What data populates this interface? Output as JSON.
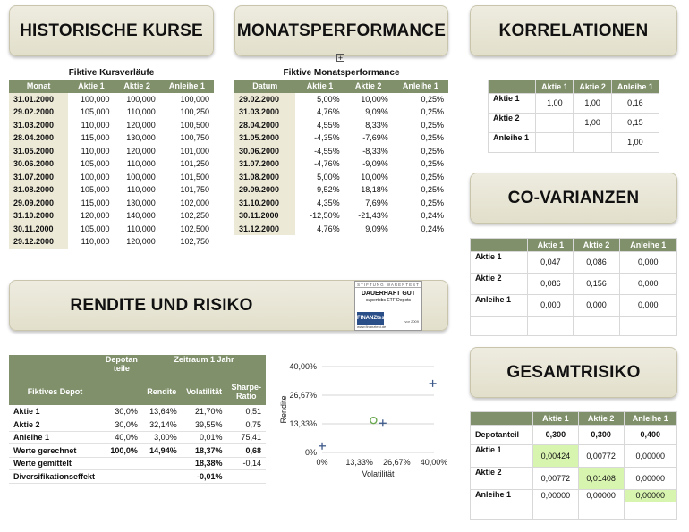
{
  "banners": {
    "historische": "HISTORISCHE KURSE",
    "monatsperformance": "MONATSPERFORMANCE",
    "korrelationen": "KORRELATIONEN",
    "covarianzen": "CO-VARIANZEN",
    "rendite": "RENDITE UND RISIKO",
    "gesamtrisiko": "GESAMTRISIKO"
  },
  "kurse": {
    "caption": "Fiktive Kursverläufe",
    "headers": [
      "Monat",
      "Aktie 1",
      "Aktie 2",
      "Anleihe 1"
    ],
    "rows": [
      [
        "31.01.2000",
        "100,000",
        "100,000",
        "100,000"
      ],
      [
        "29.02.2000",
        "105,000",
        "110,000",
        "100,250"
      ],
      [
        "31.03.2000",
        "110,000",
        "120,000",
        "100,500"
      ],
      [
        "28.04.2000",
        "115,000",
        "130,000",
        "100,750"
      ],
      [
        "31.05.2000",
        "110,000",
        "120,000",
        "101,000"
      ],
      [
        "30.06.2000",
        "105,000",
        "110,000",
        "101,250"
      ],
      [
        "31.07.2000",
        "100,000",
        "100,000",
        "101,500"
      ],
      [
        "31.08.2000",
        "105,000",
        "110,000",
        "101,750"
      ],
      [
        "29.09.2000",
        "115,000",
        "130,000",
        "102,000"
      ],
      [
        "31.10.2000",
        "120,000",
        "140,000",
        "102,250"
      ],
      [
        "30.11.2000",
        "105,000",
        "110,000",
        "102,500"
      ],
      [
        "29.12.2000",
        "110,000",
        "120,000",
        "102,750"
      ]
    ]
  },
  "performance": {
    "caption": "Fiktive Monatsperformance",
    "headers": [
      "Datum",
      "Aktie 1",
      "Aktie 2",
      "Anleihe 1"
    ],
    "rows": [
      [
        "29.02.2000",
        "5,00%",
        "10,00%",
        "0,25%"
      ],
      [
        "31.03.2000",
        "4,76%",
        "9,09%",
        "0,25%"
      ],
      [
        "28.04.2000",
        "4,55%",
        "8,33%",
        "0,25%"
      ],
      [
        "31.05.2000",
        "-4,35%",
        "-7,69%",
        "0,25%"
      ],
      [
        "30.06.2000",
        "-4,55%",
        "-8,33%",
        "0,25%"
      ],
      [
        "31.07.2000",
        "-4,76%",
        "-9,09%",
        "0,25%"
      ],
      [
        "31.08.2000",
        "5,00%",
        "10,00%",
        "0,25%"
      ],
      [
        "29.09.2000",
        "9,52%",
        "18,18%",
        "0,25%"
      ],
      [
        "31.10.2000",
        "4,35%",
        "7,69%",
        "0,25%"
      ],
      [
        "30.11.2000",
        "-12,50%",
        "-21,43%",
        "0,24%"
      ],
      [
        "31.12.2000",
        "4,76%",
        "9,09%",
        "0,24%"
      ]
    ]
  },
  "korrelation": {
    "headers": [
      "",
      "Aktie 1",
      "Aktie 2",
      "Anleihe 1"
    ],
    "rows": [
      [
        "Aktie 1",
        "1,00",
        "1,00",
        "0,16"
      ],
      [
        "Aktie 2",
        "",
        "1,00",
        "0,15"
      ],
      [
        "Anleihe 1",
        "",
        "",
        "1,00"
      ]
    ]
  },
  "kovarianz": {
    "headers": [
      "",
      "Aktie 1",
      "Aktie 2",
      "Anleihe 1"
    ],
    "rows": [
      [
        "Aktie 1",
        "0,047",
        "0,086",
        "0,000"
      ],
      [
        "Aktie 2",
        "0,086",
        "0,156",
        "0,000"
      ],
      [
        "Anleihe 1",
        "0,000",
        "0,000",
        "0,000"
      ]
    ]
  },
  "gesamtrisiko": {
    "headers": [
      "",
      "Aktie 1",
      "Aktie 2",
      "Anleihe 1"
    ],
    "depotanteil": [
      "Depotanteil",
      "0,300",
      "0,300",
      "0,400"
    ],
    "rows": [
      [
        "Aktie 1",
        "0,00424",
        "0,00772",
        "0,00000"
      ],
      [
        "Aktie 2",
        "0,00772",
        "0,01408",
        "0,00000"
      ],
      [
        "Anleihe 1",
        "0,00000",
        "0,00000",
        "0,00000"
      ]
    ],
    "highlight_color": "#d8f5b0"
  },
  "depot": {
    "head_depotanteile": "Depotan teile",
    "head_zeitraum": "Zeitraum 1 Jahr",
    "head_fiktives": "Fiktives Depot",
    "head_rendite": "Rendite",
    "head_volatilitaet": "Volatilität",
    "head_sharpe": "Sharpe-Ratio",
    "rows": [
      [
        "Aktie 1",
        "30,0%",
        "13,64%",
        "21,70%",
        "0,51"
      ],
      [
        "Aktie 2",
        "30,0%",
        "32,14%",
        "39,55%",
        "0,75"
      ],
      [
        "Anleihe 1",
        "40,0%",
        "3,00%",
        "0,01%",
        "75,41"
      ]
    ],
    "gerechnet": [
      "Werte gerechnet",
      "100,0%",
      "14,94%",
      "18,37%",
      "0,68"
    ],
    "gemittelt": [
      "Werte gemittelt",
      "",
      "",
      "18,38%",
      "-0,14"
    ],
    "diversifikation": [
      "Diversifikationseffekt",
      "",
      "",
      "-0,01%",
      ""
    ]
  },
  "badge": {
    "org": "STIFTUNG WARENTEST",
    "verdict": "DAUERHAFT GUT",
    "subject": "supertobs ETF Depots",
    "logo": "FINANZtest",
    "year": "vor 2009",
    "url": "www.finanztest.de"
  },
  "chart_data": {
    "type": "scatter",
    "xlabel": "Volatilität",
    "ylabel": "Rendite",
    "x_ticks": [
      "0%",
      "13,33%",
      "26,67%",
      "40,00%"
    ],
    "y_ticks": [
      "0%",
      "13,33%",
      "26,67%",
      "40,00%"
    ],
    "xlim": [
      0,
      0.4
    ],
    "ylim": [
      0,
      0.4
    ],
    "grid": true,
    "series": [
      {
        "marker": "plus",
        "color": "#3d5a8a",
        "points": [
          [
            0.0001,
            0.03
          ],
          [
            0.217,
            0.1364
          ],
          [
            0.3955,
            0.3214
          ]
        ]
      },
      {
        "marker": "circle",
        "color": "#6aa84f",
        "points": [
          [
            0.1837,
            0.1494
          ]
        ]
      }
    ]
  }
}
